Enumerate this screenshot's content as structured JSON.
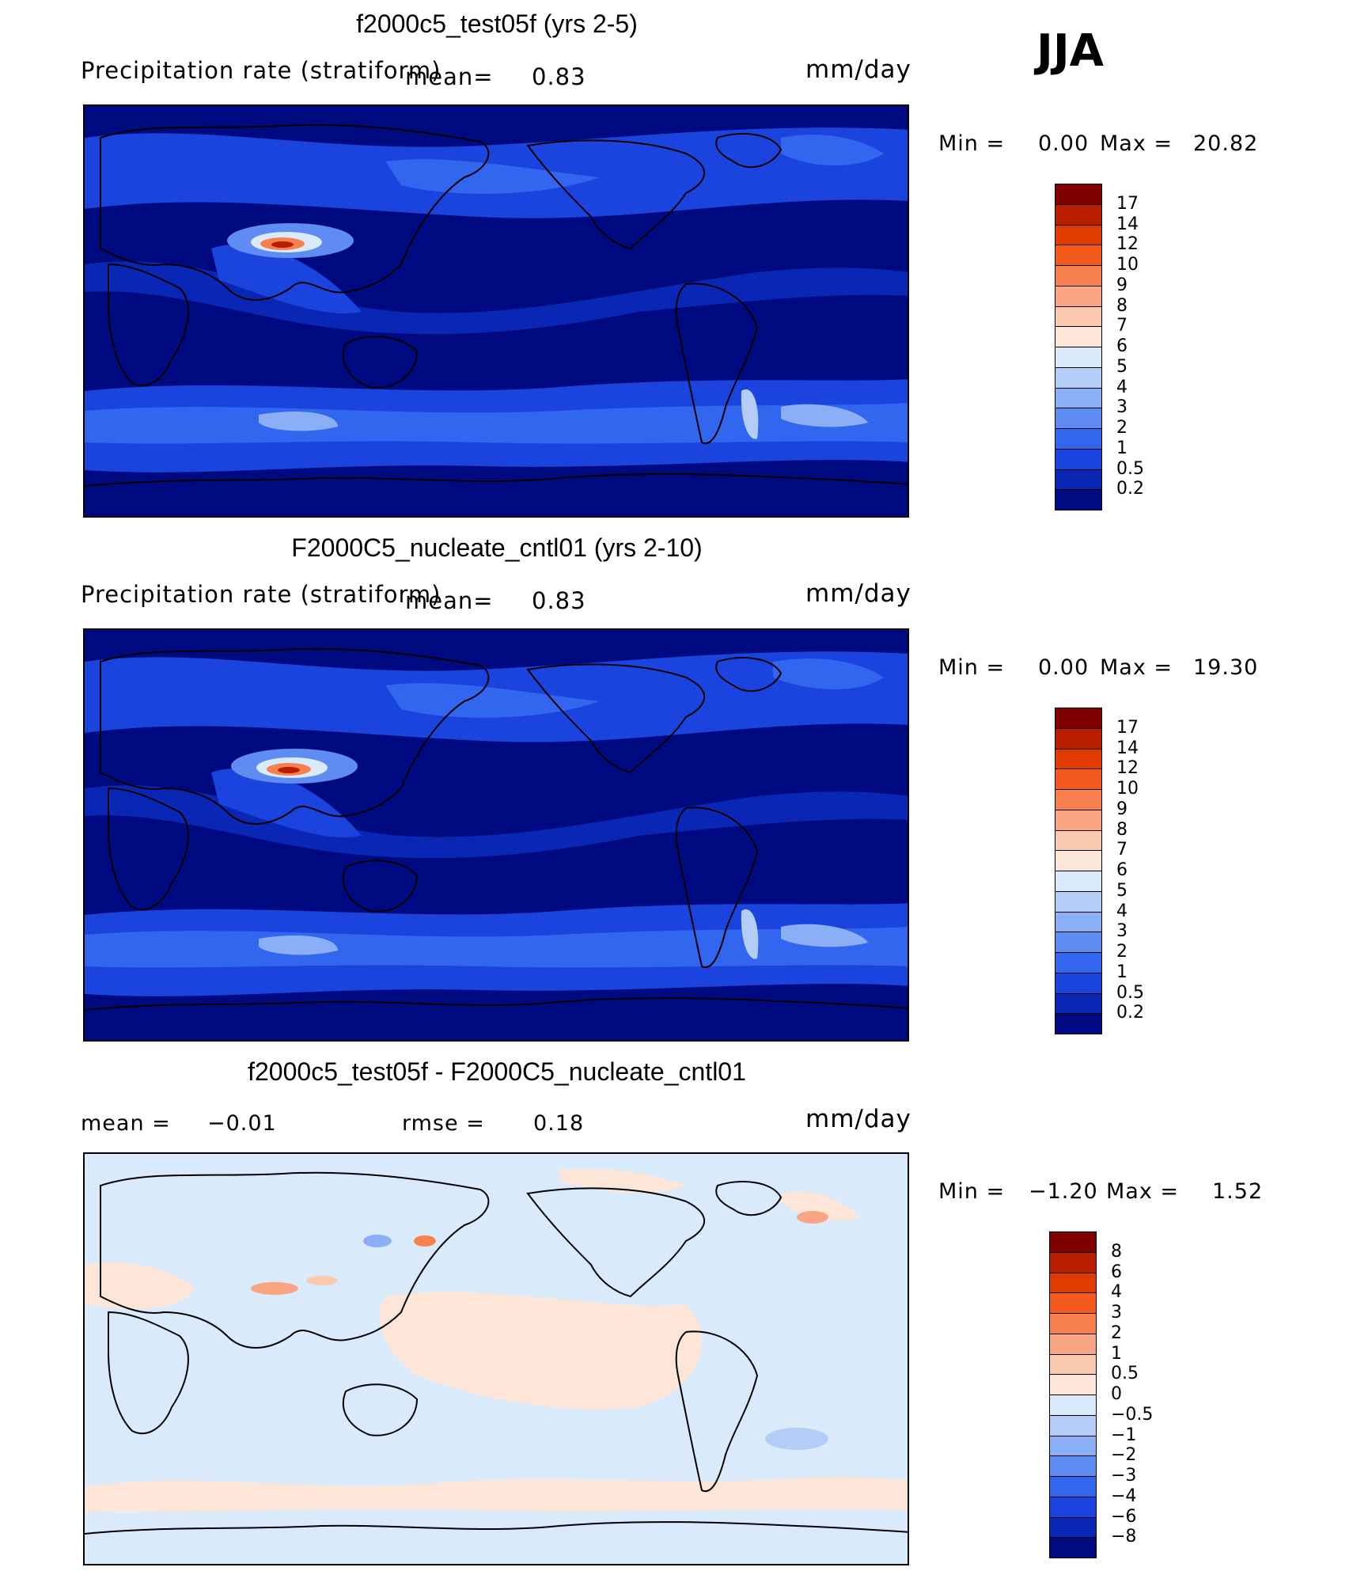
{
  "season": "JJA",
  "panels": [
    {
      "title": "f2000c5_test05f (yrs 2-5)",
      "variable": "Precipitation rate (stratiform)",
      "mean_label": "mean=",
      "mean_value": "0.83",
      "units": "mm/day",
      "min_label": "Min =",
      "min_value": "0.00",
      "max_label": "Max =",
      "max_value": "20.82",
      "colorbar_labels": [
        "17",
        "14",
        "12",
        "10",
        "9",
        "8",
        "7",
        "6",
        "5",
        "4",
        "3",
        "2",
        "1",
        "0.5",
        "0.2"
      ],
      "colorbar_colors": [
        "#800000",
        "#b81d00",
        "#e03b00",
        "#f45a1e",
        "#f8804e",
        "#f9a583",
        "#fbc9b0",
        "#fde6d7",
        "#d9eafb",
        "#b4cdf8",
        "#8aaff6",
        "#5e8cf2",
        "#3366ee",
        "#1a44dd",
        "#0a26b4",
        "#000a80"
      ]
    },
    {
      "title": "F2000C5_nucleate_cntl01 (yrs 2-10)",
      "variable": "Precipitation rate (stratiform)",
      "mean_label": "mean=",
      "mean_value": "0.83",
      "units": "mm/day",
      "min_label": "Min =",
      "min_value": "0.00",
      "max_label": "Max =",
      "max_value": "19.30",
      "colorbar_labels": [
        "17",
        "14",
        "12",
        "10",
        "9",
        "8",
        "7",
        "6",
        "5",
        "4",
        "3",
        "2",
        "1",
        "0.5",
        "0.2"
      ],
      "colorbar_colors": [
        "#800000",
        "#b81d00",
        "#e03b00",
        "#f45a1e",
        "#f8804e",
        "#f9a583",
        "#fbc9b0",
        "#fde6d7",
        "#d9eafb",
        "#b4cdf8",
        "#8aaff6",
        "#5e8cf2",
        "#3366ee",
        "#1a44dd",
        "#0a26b4",
        "#000a80"
      ]
    },
    {
      "title": "f2000c5_test05f - F2000C5_nucleate_cntl01",
      "mean_label": "mean =",
      "mean_value": "−0.01",
      "rmse_label": "rmse =",
      "rmse_value": "0.18",
      "units": "mm/day",
      "min_label": "Min =",
      "min_value": "−1.20",
      "max_label": "Max =",
      "max_value": "1.52",
      "colorbar_labels": [
        "8",
        "6",
        "4",
        "3",
        "2",
        "1",
        "0.5",
        "0",
        "−0.5",
        "−1",
        "−2",
        "−3",
        "−4",
        "−6",
        "−8"
      ],
      "colorbar_colors": [
        "#800000",
        "#b81d00",
        "#e03b00",
        "#f45a1e",
        "#f8804e",
        "#f9a583",
        "#fbc9b0",
        "#fde6d7",
        "#d9eafb",
        "#b4cdf8",
        "#8aaff6",
        "#5e8cf2",
        "#3366ee",
        "#1a44dd",
        "#0a26b4",
        "#000a80"
      ]
    }
  ]
}
